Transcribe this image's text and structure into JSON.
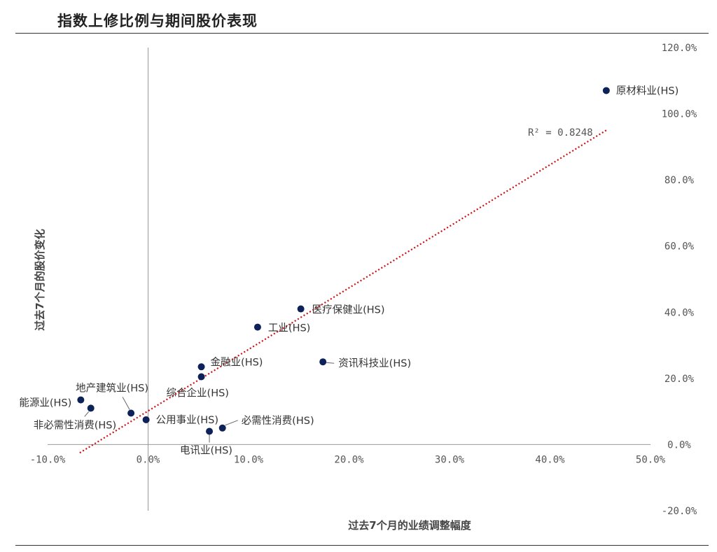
{
  "page": {
    "title": "指数上修比例与期间股价表现"
  },
  "chart_data": {
    "type": "scatter",
    "title": "指数上修比例与期间股价表现",
    "xlabel": "过去7个月的业绩调整幅度",
    "ylabel": "过去7个月的股价变化",
    "xlim": [
      -10,
      50
    ],
    "ylim": [
      -20,
      120
    ],
    "x_ticks": [
      "-10.0%",
      "0.0%",
      "10.0%",
      "20.0%",
      "30.0%",
      "40.0%",
      "50.0%"
    ],
    "y_ticks": [
      "120.0%",
      "100.0%",
      "80.0%",
      "60.0%",
      "40.0%",
      "20.0%",
      "0.0%",
      "-20.0%"
    ],
    "grid": false,
    "point_color": "#0d2259",
    "trend_color": "#cc1111",
    "points": [
      {
        "name": "原材料业(HS)",
        "x": 45.6,
        "y": 107.0
      },
      {
        "name": "医疗保健业(HS)",
        "x": 15.2,
        "y": 41.0
      },
      {
        "name": "工业(HS)",
        "x": 10.9,
        "y": 35.5
      },
      {
        "name": "资讯科技业(HS)",
        "x": 17.4,
        "y": 25.0
      },
      {
        "name": "金融业(HS)",
        "x": 5.3,
        "y": 23.5
      },
      {
        "name": "综合企业(HS)",
        "x": 5.3,
        "y": 20.5
      },
      {
        "name": "地产建筑业(HS)",
        "x": -1.7,
        "y": 9.5
      },
      {
        "name": "能源业(HS)",
        "x": -6.7,
        "y": 13.5
      },
      {
        "name": "非必需性消费(HS)",
        "x": -5.7,
        "y": 11.0
      },
      {
        "name": "公用事业(HS)",
        "x": -0.2,
        "y": 7.5
      },
      {
        "name": "必需性消费(HS)",
        "x": 7.4,
        "y": 5.0
      },
      {
        "name": "电讯业(HS)",
        "x": 6.1,
        "y": 4.0
      }
    ],
    "trendline": {
      "x": [
        -6.8,
        45.6
      ],
      "y": [
        -2.5,
        95.0
      ],
      "r2_label": "R² = 0.8248"
    }
  }
}
